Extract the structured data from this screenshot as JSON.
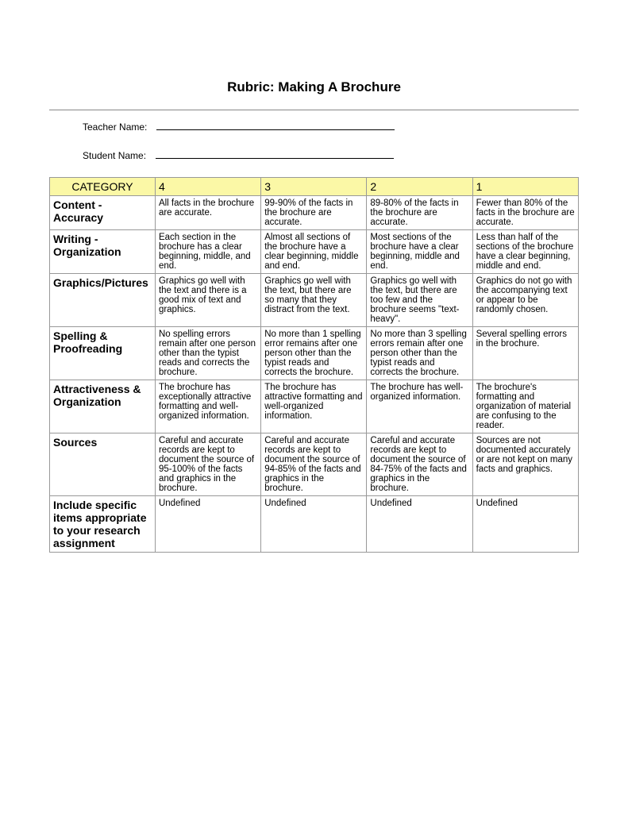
{
  "title": "Rubric: Making A Brochure",
  "fields": {
    "teacher_label": "Teacher Name:",
    "student_label": "Student Name:"
  },
  "header": {
    "bg_color": "#fbf8a6",
    "columns": [
      "CATEGORY",
      "4",
      "3",
      "2",
      "1"
    ]
  },
  "rows": [
    {
      "category": "Content - Accuracy",
      "c4": "All facts in the brochure are accurate.",
      "c3": "99-90% of the facts in the brochure are accurate.",
      "c2": "89-80% of the facts in the brochure are accurate.",
      "c1": "Fewer than 80% of the facts in the brochure are accurate."
    },
    {
      "category": "Writing - Organization",
      "c4": "Each section in the brochure has a clear beginning, middle, and end.",
      "c3": "Almost all sections of the brochure have a clear beginning, middle and end.",
      "c2": "Most sections of the brochure have a clear beginning, middle and end.",
      "c1": "Less than half of the sections of the brochure have a clear beginning, middle and end."
    },
    {
      "category": "Graphics/Pictures",
      "c4": "Graphics go well with the text and there is a good mix of text and graphics.",
      "c3": "Graphics go well with the text, but there are so many that they distract from the text.",
      "c2": "Graphics go well with the text, but there are too few and the brochure seems \"text-heavy\".",
      "c1": "Graphics do not go with the accompanying text or appear to be randomly chosen."
    },
    {
      "category": "Spelling & Proofreading",
      "c4": "No spelling errors remain after one person other than the typist reads and corrects the brochure.",
      "c3": "No more than 1 spelling error remains after one person other than the typist reads and corrects the brochure.",
      "c2": "No more than 3 spelling errors remain after one person other than the typist reads and corrects the brochure.",
      "c1": "Several spelling errors in the brochure."
    },
    {
      "category": "Attractiveness & Organization",
      "c4": "The brochure has exceptionally attractive formatting and well-organized information.",
      "c3": "The brochure has attractive formatting and well-organized information.",
      "c2": "The brochure has well-organized information.",
      "c1": "The brochure's formatting and organization of material are confusing to the reader."
    },
    {
      "category": "Sources",
      "c4": "Careful and accurate records are kept to document the source of 95-100% of the facts and graphics in the brochure.",
      "c3": "Careful and accurate records are kept to document the source of 94-85% of the facts and graphics in the brochure.",
      "c2": "Careful and accurate records are kept to document the source of 84-75% of the facts and graphics in the brochure.",
      "c1": "Sources are not documented accurately or are not kept on many facts and graphics."
    },
    {
      "category": "Include specific items appropriate to your research assignment",
      "c4": "Undefined",
      "c3": "Undefined",
      "c2": "Undefined",
      "c1": "Undefined"
    }
  ]
}
